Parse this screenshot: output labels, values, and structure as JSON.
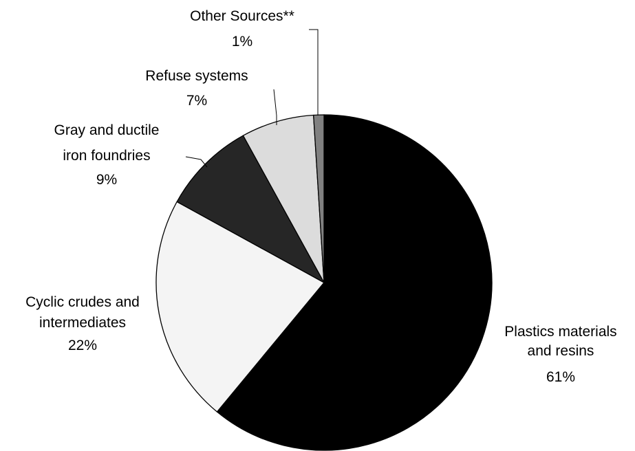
{
  "chart_data": {
    "type": "pie",
    "start_angle_deg": 0,
    "direction": "clockwise",
    "slices": [
      {
        "label": [
          "Plastics materials",
          "and resins"
        ],
        "value": 61,
        "display": "61%",
        "color": "#000000"
      },
      {
        "label": [
          "Cyclic crudes and",
          "intermediates"
        ],
        "value": 22,
        "display": "22%",
        "color": "#f4f4f4"
      },
      {
        "label": [
          "Gray  and ductile",
          "iron foundries"
        ],
        "value": 9,
        "display": "9%",
        "color": "#262626"
      },
      {
        "label": [
          "Refuse systems"
        ],
        "value": 7,
        "display": "7%",
        "color": "#dcdcdc"
      },
      {
        "label": [
          "Other Sources**"
        ],
        "value": 1,
        "display": "1%",
        "color": "#808080"
      }
    ]
  }
}
